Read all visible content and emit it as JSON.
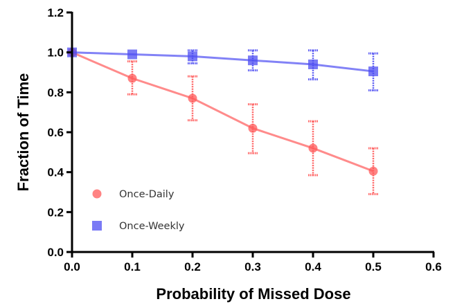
{
  "chart_data": {
    "type": "line",
    "title": "",
    "xlabel": "Probability of Missed Dose",
    "ylabel": "Fraction of Time",
    "xlim": [
      0.0,
      0.6
    ],
    "ylim": [
      0.0,
      1.2
    ],
    "xticks": [
      "0.0",
      "0.1",
      "0.2",
      "0.3",
      "0.4",
      "0.5",
      "0.6"
    ],
    "yticks": [
      "0.0",
      "0.2",
      "0.4",
      "0.6",
      "0.8",
      "1.0",
      "1.2"
    ],
    "grid": false,
    "legend_position": "bottom-left",
    "series": [
      {
        "name": "Once-Daily",
        "marker": "circle",
        "color": "#ff5a5a",
        "x": [
          0.0,
          0.1,
          0.2,
          0.3,
          0.4,
          0.5
        ],
        "y": [
          1.0,
          0.87,
          0.77,
          0.62,
          0.52,
          0.405
        ],
        "err_low": [
          1.0,
          0.79,
          0.66,
          0.495,
          0.385,
          0.29
        ],
        "err_high": [
          1.0,
          0.955,
          0.88,
          0.74,
          0.655,
          0.52
        ]
      },
      {
        "name": "Once-Weekly",
        "marker": "square",
        "color": "#4d4df2",
        "x": [
          0.0,
          0.1,
          0.2,
          0.3,
          0.4,
          0.5
        ],
        "y": [
          1.0,
          0.99,
          0.98,
          0.96,
          0.94,
          0.905
        ],
        "err_low": [
          1.0,
          0.99,
          0.945,
          0.91,
          0.865,
          0.81
        ],
        "err_high": [
          1.0,
          0.99,
          1.01,
          1.01,
          1.01,
          0.995
        ]
      }
    ]
  }
}
